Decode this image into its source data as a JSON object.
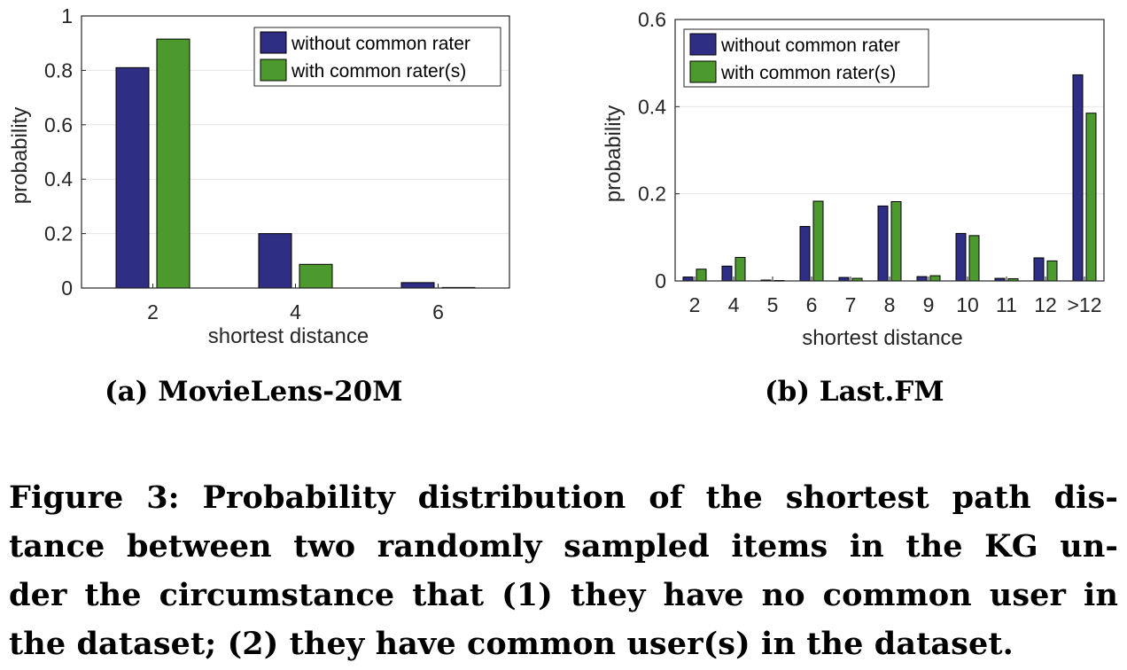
{
  "chart_data": [
    {
      "type": "bar",
      "subcaption": "(a) MovieLens-20M",
      "categories": [
        "2",
        "4",
        "6"
      ],
      "series": [
        {
          "name": "without common rater",
          "color": "#2e2e84",
          "values": [
            0.81,
            0.2,
            0.02
          ]
        },
        {
          "name": "with common rater(s)",
          "color": "#4c9a2e",
          "values": [
            0.915,
            0.087,
            0.002
          ]
        }
      ],
      "xlabel": "shortest distance",
      "ylabel": "probability",
      "ylim": [
        0,
        1
      ],
      "yticks": [
        {
          "value": 0,
          "label": "0"
        },
        {
          "value": 0.2,
          "label": "0.2"
        },
        {
          "value": 0.4,
          "label": "0.4"
        },
        {
          "value": 0.6,
          "label": "0.6"
        },
        {
          "value": 0.8,
          "label": "0.8"
        },
        {
          "value": 1,
          "label": "1"
        }
      ],
      "grid": true,
      "legend_position": "top-right"
    },
    {
      "type": "bar",
      "subcaption": "(b) Last.FM",
      "categories": [
        "2",
        "4",
        "5",
        "6",
        "7",
        "8",
        "9",
        "10",
        "11",
        "12",
        ">12"
      ],
      "series": [
        {
          "name": "without common rater",
          "color": "#2e2e84",
          "values": [
            0.009,
            0.034,
            0.002,
            0.125,
            0.008,
            0.172,
            0.01,
            0.109,
            0.006,
            0.053,
            0.473
          ]
        },
        {
          "name": "with common rater(s)",
          "color": "#4c9a2e",
          "values": [
            0.027,
            0.054,
            0.001,
            0.183,
            0.006,
            0.182,
            0.012,
            0.104,
            0.005,
            0.046,
            0.385
          ]
        }
      ],
      "xlabel": "shortest distance",
      "ylabel": "probability",
      "ylim": [
        0,
        0.6
      ],
      "yticks": [
        {
          "value": 0,
          "label": "0"
        },
        {
          "value": 0.2,
          "label": "0.2"
        },
        {
          "value": 0.4,
          "label": "0.4"
        },
        {
          "value": 0.6,
          "label": "0.6"
        }
      ],
      "grid": true,
      "legend_position": "top-left"
    }
  ],
  "caption": {
    "lines": [
      "Figure 3: Probability distribution of the shortest path dis-",
      "tance between two randomly sampled items in the KG un-",
      "der the circumstance that (1) they have no common user in",
      "the dataset; (2) they have common user(s) in the dataset."
    ]
  }
}
